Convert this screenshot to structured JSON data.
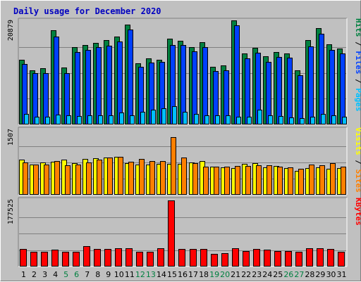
{
  "chart_data": {
    "type": "bar",
    "title": "Daily usage for December 2020",
    "x": [
      1,
      2,
      3,
      4,
      5,
      6,
      7,
      8,
      9,
      10,
      11,
      12,
      13,
      14,
      15,
      16,
      17,
      18,
      19,
      20,
      21,
      22,
      23,
      24,
      25,
      26,
      27,
      28,
      29,
      30,
      31
    ],
    "weekend_days": [
      5,
      6,
      12,
      13,
      19,
      20,
      26,
      27
    ],
    "colors": {
      "hits": "#008040",
      "files": "#0040ff",
      "pages": "#00c0ff",
      "visits": "#ffff00",
      "sites": "#ff8000",
      "kbytes": "#ff0000",
      "weekday": "#000000",
      "weekend": "#008040"
    },
    "panels": [
      {
        "id": "hits-files-pages",
        "ymax_label": "20879",
        "ymax": 20879,
        "side_labels": [
          "Hits",
          "Files",
          "Pages"
        ],
        "series": [
          {
            "name": "Hits",
            "color": "#008040",
            "values": [
              13000,
              11000,
              11300,
              19100,
              11500,
              15600,
              16100,
              16500,
              17000,
              17800,
              20100,
              12400,
              13400,
              13100,
              17300,
              16900,
              15600,
              16600,
              11700,
              12000,
              21000,
              14400,
              15500,
              13800,
              14600,
              14300,
              10900,
              17000,
              19400,
              16200,
              15400
            ]
          },
          {
            "name": "Files",
            "color": "#0040ff",
            "values": [
              12200,
              10300,
              10400,
              17800,
              10400,
              14600,
              15100,
              15600,
              15900,
              16800,
              19200,
              11600,
              12500,
              12600,
              16100,
              16100,
              14800,
              15600,
              10800,
              11000,
              20000,
              13300,
              14500,
              12600,
              13700,
              13500,
              9900,
              15800,
              18300,
              15000,
              14300
            ]
          },
          {
            "name": "Pages",
            "color": "#00c0ff",
            "values": [
              2100,
              1600,
              1600,
              2000,
              1800,
              1700,
              1800,
              1800,
              1800,
              2400,
              1900,
              2600,
              3000,
              3200,
              3700,
              2500,
              2100,
              1800,
              1800,
              1800,
              1600,
              1500,
              3000,
              1800,
              1700,
              1400,
              1300,
              1500,
              2200,
              1800,
              1500
            ]
          }
        ]
      },
      {
        "id": "visits-sites",
        "ymax_label": "1507",
        "ymax": 1507,
        "side_labels": [
          "Visits",
          "Sites"
        ],
        "series": [
          {
            "name": "Visits",
            "color": "#ffff00",
            "values": [
              820,
              700,
              750,
              770,
              820,
              730,
              840,
              850,
              870,
              880,
              730,
              700,
              700,
              720,
              720,
              720,
              760,
              780,
              660,
              640,
              620,
              720,
              730,
              640,
              670,
              620,
              560,
              630,
              640,
              600,
              620
            ]
          },
          {
            "name": "Sites",
            "color": "#ff8000",
            "values": [
              750,
              710,
              710,
              780,
              690,
              710,
              750,
              820,
              860,
              880,
              770,
              830,
              780,
              790,
              1340,
              860,
              730,
              650,
              650,
              650,
              670,
              670,
              680,
              690,
              650,
              640,
              610,
              710,
              690,
              730,
              650
            ]
          }
        ]
      },
      {
        "id": "kbytes",
        "ymax_label": "177525",
        "ymax": 177525,
        "side_labels": [
          "KBytes"
        ],
        "series": [
          {
            "name": "KBytes",
            "color": "#ff0000",
            "values": [
              47000,
              39000,
              39000,
              45000,
              40000,
              40000,
              55000,
              47000,
              47000,
              50000,
              50000,
              40000,
              40000,
              49000,
              177525,
              48000,
              48000,
              48000,
              34000,
              36000,
              50000,
              42000,
              47000,
              46000,
              42000,
              42000,
              40000,
              50000,
              50000,
              48000,
              39000
            ]
          }
        ]
      }
    ]
  }
}
